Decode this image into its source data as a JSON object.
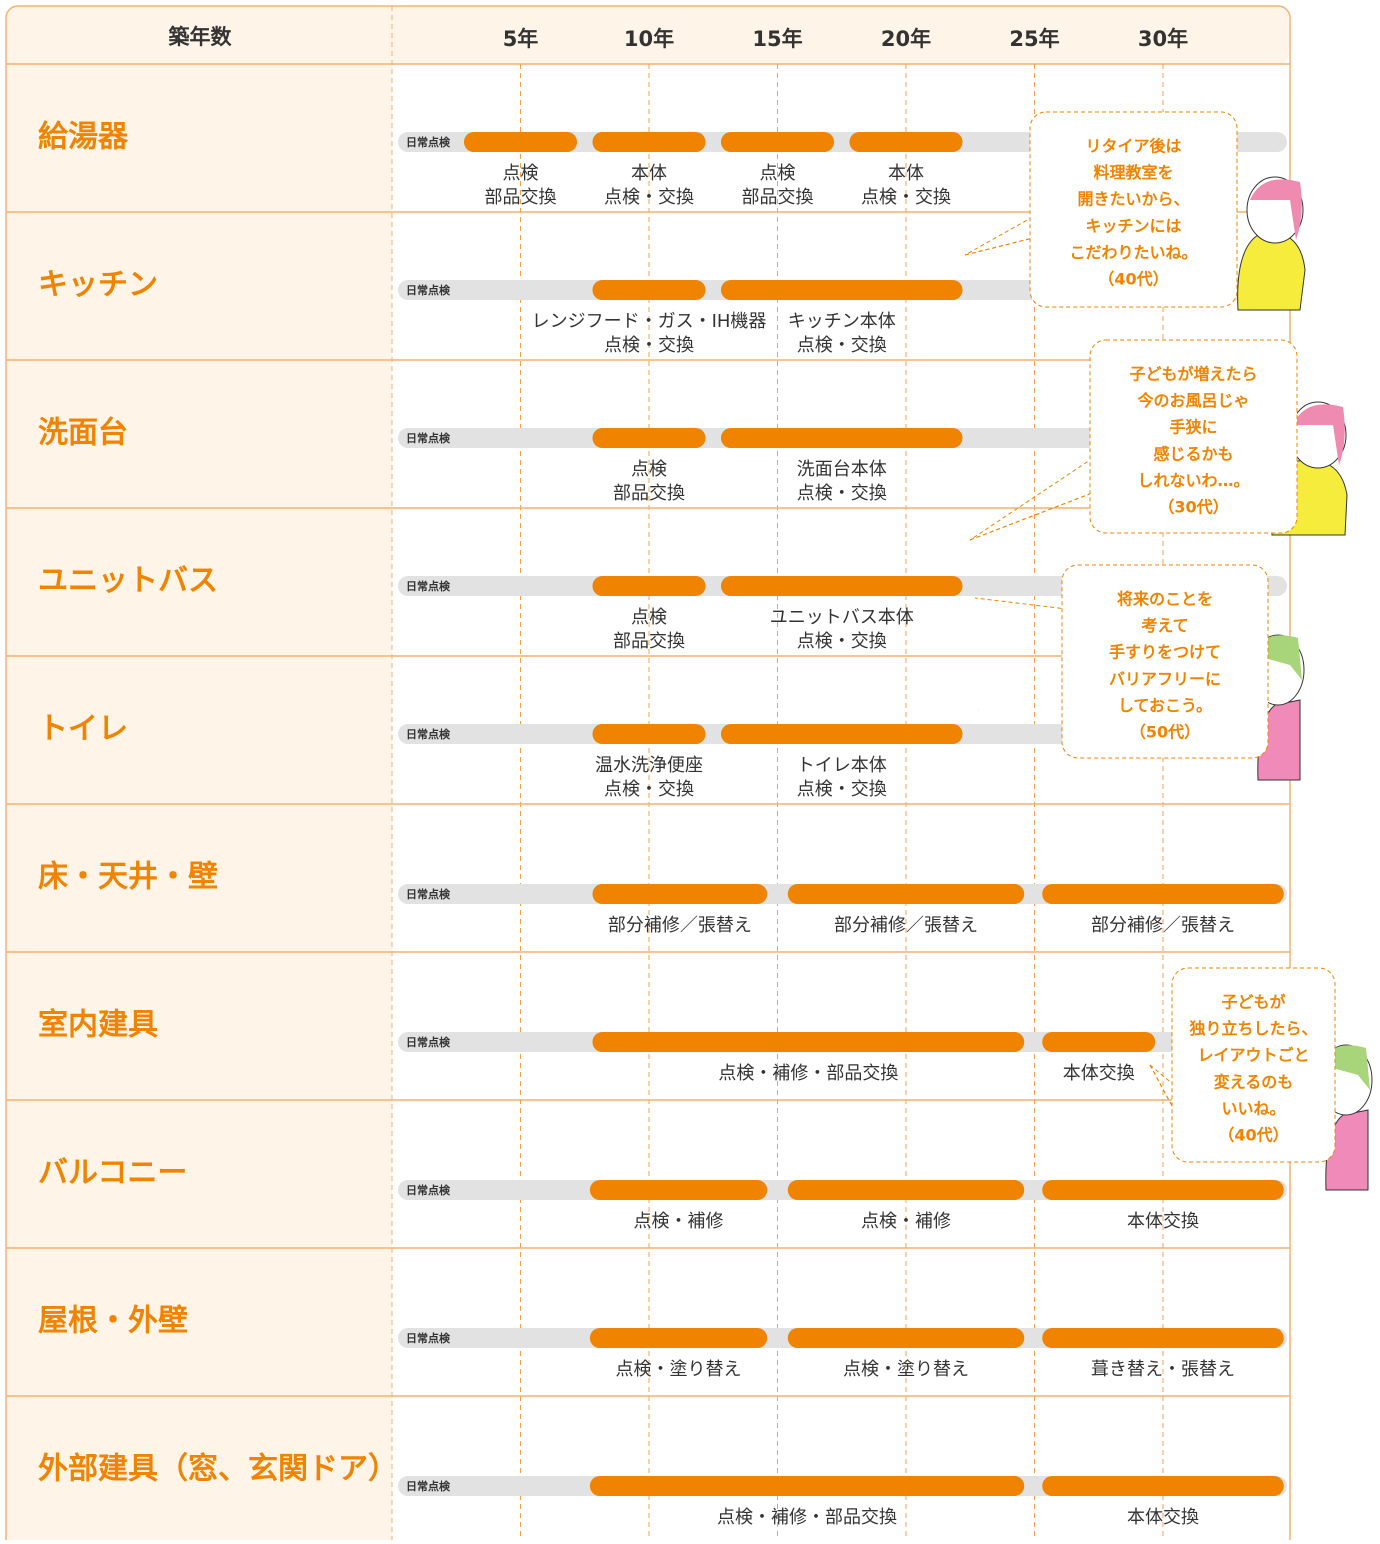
{
  "header": {
    "label": "築年数",
    "ticks": [
      {
        "value": 5,
        "label": "5年"
      },
      {
        "value": 10,
        "label": "10年"
      },
      {
        "value": 15,
        "label": "15年"
      },
      {
        "value": 20,
        "label": "20年"
      },
      {
        "value": 25,
        "label": "25年"
      },
      {
        "value": 30,
        "label": "30年"
      }
    ]
  },
  "daily_check": "日常点検",
  "rows": [
    {
      "name": "給湯器",
      "segments": [
        {
          "start": 2.8,
          "end": 7.2,
          "label": [
            "点検",
            "部品交換"
          ]
        },
        {
          "start": 7.8,
          "end": 12.2,
          "label": [
            "本体",
            "点検・交換"
          ]
        },
        {
          "start": 12.8,
          "end": 17.2,
          "label": [
            "点検",
            "部品交換"
          ]
        },
        {
          "start": 17.8,
          "end": 22.2,
          "label": [
            "本体",
            "点検・交換"
          ]
        }
      ]
    },
    {
      "name": "キッチン",
      "segments": [
        {
          "start": 7.8,
          "end": 12.2,
          "label": [
            "レンジフード・ガス・IH機器",
            "点検・交換"
          ]
        },
        {
          "start": 12.8,
          "end": 22.2,
          "label": [
            "キッチン本体",
            "点検・交換"
          ]
        }
      ]
    },
    {
      "name": "洗面台",
      "segments": [
        {
          "start": 7.8,
          "end": 12.2,
          "label": [
            "点検",
            "部品交換"
          ]
        },
        {
          "start": 12.8,
          "end": 22.2,
          "label": [
            "洗面台本体",
            "点検・交換"
          ]
        }
      ]
    },
    {
      "name": "ユニットバス",
      "segments": [
        {
          "start": 7.8,
          "end": 12.2,
          "label": [
            "点検",
            "部品交換"
          ]
        },
        {
          "start": 12.8,
          "end": 22.2,
          "label": [
            "ユニットバス本体",
            "点検・交換"
          ]
        }
      ]
    },
    {
      "name": "トイレ",
      "segments": [
        {
          "start": 7.8,
          "end": 12.2,
          "label": [
            "温水洗浄便座",
            "点検・交換"
          ]
        },
        {
          "start": 12.8,
          "end": 22.2,
          "label": [
            "トイレ本体",
            "点検・交換"
          ]
        }
      ]
    },
    {
      "name": "床・天井・壁",
      "segments": [
        {
          "start": 7.8,
          "end": 14.6,
          "label": [
            "部分補修／張替え"
          ]
        },
        {
          "start": 15.4,
          "end": 24.6,
          "label": [
            "部分補修／張替え"
          ]
        },
        {
          "start": 25.3,
          "end": 34.7,
          "label": [
            "部分補修／張替え"
          ]
        }
      ]
    },
    {
      "name": "室内建具",
      "segments": [
        {
          "start": 7.8,
          "end": 24.6,
          "label": [
            "点検・補修・部品交換"
          ]
        },
        {
          "start": 25.3,
          "end": 29.7,
          "label": [
            "本体交換"
          ]
        }
      ]
    },
    {
      "name": "バルコニー",
      "segments": [
        {
          "start": 7.7,
          "end": 14.6,
          "label": [
            "点検・補修"
          ]
        },
        {
          "start": 15.4,
          "end": 24.6,
          "label": [
            "点検・補修"
          ]
        },
        {
          "start": 25.3,
          "end": 34.7,
          "label": [
            "本体交換"
          ]
        }
      ]
    },
    {
      "name": "屋根・外壁",
      "segments": [
        {
          "start": 7.7,
          "end": 14.6,
          "label": [
            "点検・塗り替え"
          ]
        },
        {
          "start": 15.4,
          "end": 24.6,
          "label": [
            "点検・塗り替え"
          ]
        },
        {
          "start": 25.3,
          "end": 34.7,
          "label": [
            "葺き替え・張替え"
          ]
        }
      ]
    },
    {
      "name": "外部建具（窓、玄関ドア）",
      "segments": [
        {
          "start": 7.7,
          "end": 24.6,
          "label": [
            "点検・補修・部品交換"
          ]
        },
        {
          "start": 25.3,
          "end": 34.7,
          "label": [
            "本体交換"
          ]
        }
      ]
    }
  ],
  "bubbles": [
    {
      "lines": [
        "リタイア後は",
        "料理教室を",
        "開きたいから、",
        "キッチンには",
        "こだわりたいね。",
        "（40代）"
      ]
    },
    {
      "lines": [
        "子どもが増えたら",
        "今のお風呂じゃ",
        "手狭に",
        "感じるかも",
        "しれないわ…。",
        "（30代）"
      ]
    },
    {
      "lines": [
        "将来のことを",
        "考えて",
        "手すりをつけて",
        "バリアフリーに",
        "しておこう。",
        "（50代）"
      ]
    },
    {
      "lines": [
        "子どもが",
        "独り立ちしたら、",
        "レイアウトごと",
        "変えるのも",
        "いいね。",
        "（40代）"
      ]
    }
  ]
}
